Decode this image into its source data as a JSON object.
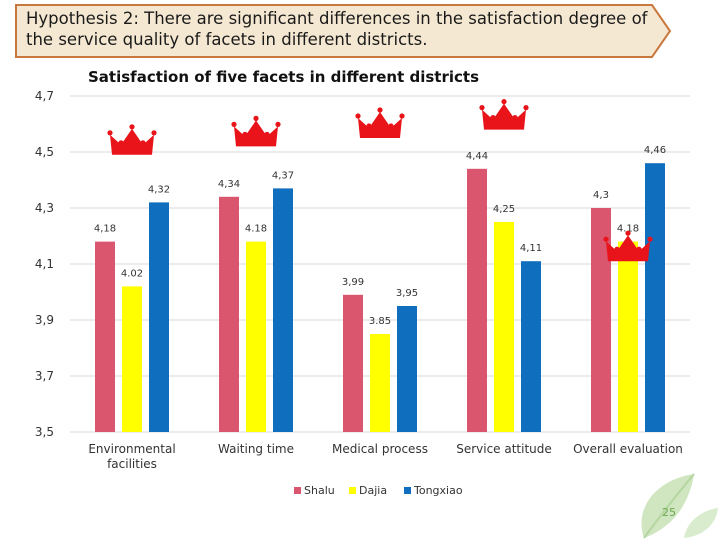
{
  "header": {
    "title": "Hypothesis 2: There are significant differences in the satisfaction degree of the service quality of facets in different districts."
  },
  "page_number": "25",
  "colors": {
    "banner_fill": "#f5e8d2",
    "banner_stroke": "#c8783c",
    "crown": "#e8141a",
    "leaf": "#cfe6c0"
  },
  "icons": {
    "crown": "crown-icon",
    "leaf": "leaf-icon"
  },
  "chart_data": {
    "type": "bar",
    "title": "Satisfaction of five facets in different districts",
    "categories": [
      "Environmental facilities",
      "Waiting time",
      "Medical process",
      "Service attitude",
      "Overall evaluation"
    ],
    "series": [
      {
        "name": "Shalu",
        "color": "#d9566e",
        "values": [
          4.18,
          4.34,
          3.99,
          4.44,
          4.3
        ],
        "labels": [
          "4,18",
          "4,34",
          "3,99",
          "4,44",
          "4,3"
        ]
      },
      {
        "name": "Dajia",
        "color": "#ffff00",
        "values": [
          4.02,
          4.18,
          3.85,
          4.25,
          4.18
        ],
        "labels": [
          "4.02",
          "4.18",
          "3.85",
          "4,25",
          "4.18"
        ]
      },
      {
        "name": "Tongxiao",
        "color": "#0f6ebe",
        "values": [
          4.32,
          4.37,
          3.95,
          4.11,
          4.46
        ],
        "labels": [
          "4,32",
          "4,37",
          "3,95",
          "4,11",
          "4,46"
        ]
      }
    ],
    "y_ticks": [
      {
        "value": 3.5,
        "label": "3,5"
      },
      {
        "value": 3.7,
        "label": "3,7"
      },
      {
        "value": 3.9,
        "label": "3,9"
      },
      {
        "value": 4.1,
        "label": "4,1"
      },
      {
        "value": 4.3,
        "label": "4,3"
      },
      {
        "value": 4.5,
        "label": "4,5"
      },
      {
        "value": 4.7,
        "label": "4,7"
      }
    ],
    "ylim": [
      3.5,
      4.7
    ],
    "grid": true,
    "legend": "bottom",
    "crowns": [
      4.54,
      4.57,
      4.6,
      4.63,
      4.16
    ]
  }
}
